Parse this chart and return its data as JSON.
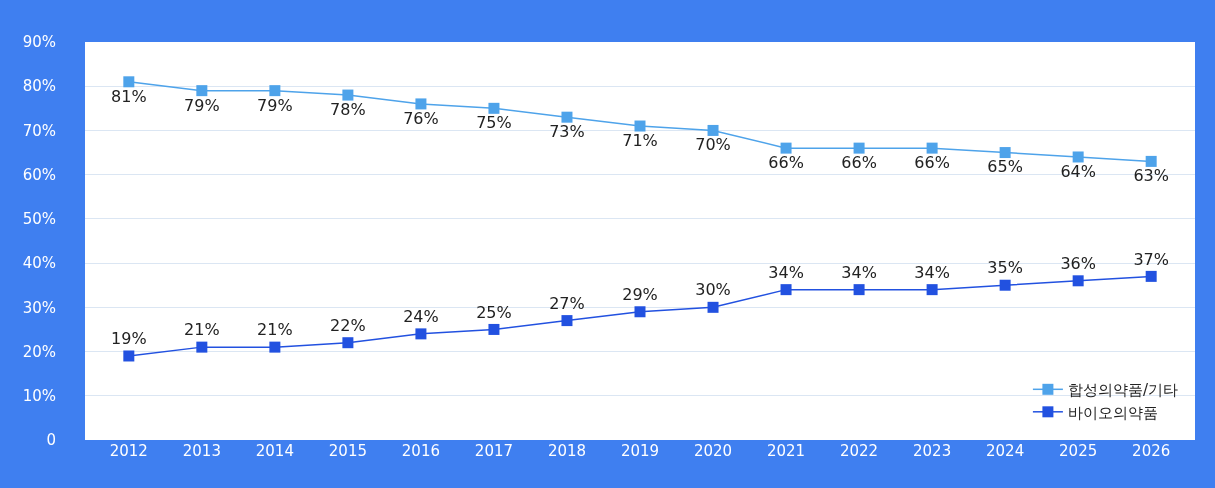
{
  "chart_data": {
    "type": "line",
    "categories": [
      "2012",
      "2013",
      "2014",
      "2015",
      "2016",
      "2017",
      "2018",
      "2019",
      "2020",
      "2021",
      "2022",
      "2023",
      "2024",
      "2025",
      "2026"
    ],
    "series": [
      {
        "name": "합성의약품/기타",
        "color": "#4ea3ea",
        "values": [
          81,
          79,
          79,
          78,
          76,
          75,
          73,
          71,
          70,
          66,
          66,
          66,
          65,
          64,
          63
        ],
        "value_labels": [
          "81%",
          "79%",
          "79%",
          "78%",
          "76%",
          "75%",
          "73%",
          "71%",
          "70%",
          "66%",
          "66%",
          "66%",
          "65%",
          "64%",
          "63%"
        ]
      },
      {
        "name": "바이오의약품",
        "color": "#2251e0",
        "values": [
          19,
          21,
          21,
          22,
          24,
          25,
          27,
          29,
          30,
          34,
          34,
          34,
          35,
          36,
          37
        ],
        "value_labels": [
          "19%",
          "21%",
          "21%",
          "22%",
          "24%",
          "25%",
          "27%",
          "29%",
          "30%",
          "34%",
          "34%",
          "34%",
          "35%",
          "36%",
          "37%"
        ]
      }
    ],
    "ylim": [
      0,
      90
    ],
    "yticks": [
      {
        "value": 0,
        "label": "0"
      },
      {
        "value": 10,
        "label": "10%"
      },
      {
        "value": 20,
        "label": "20%"
      },
      {
        "value": 30,
        "label": "30%"
      },
      {
        "value": 40,
        "label": "40%"
      },
      {
        "value": 50,
        "label": "50%"
      },
      {
        "value": 60,
        "label": "60%"
      },
      {
        "value": 70,
        "label": "70%"
      },
      {
        "value": 80,
        "label": "80%"
      },
      {
        "value": 90,
        "label": "90%"
      }
    ],
    "grid": "y",
    "legend": "bottom right",
    "marker": "square",
    "line_style": "solid"
  }
}
